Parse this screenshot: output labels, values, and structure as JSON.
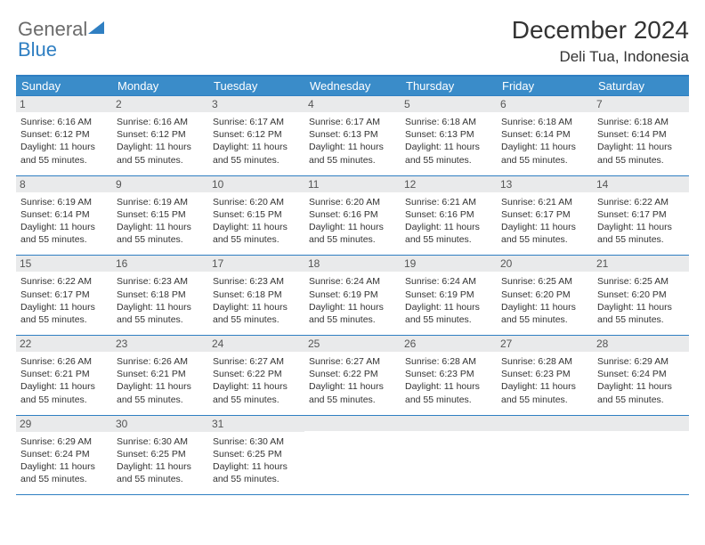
{
  "logo": {
    "text1": "General",
    "text2": "Blue",
    "text_color": "#6b6b6b",
    "blue_color": "#2f7fc2"
  },
  "title": "December 2024",
  "location": "Deli Tua, Indonesia",
  "header_bg": "#3a8cc9",
  "daynum_bg": "#e9eaeb",
  "border_color": "#2f7fc2",
  "day_names": [
    "Sunday",
    "Monday",
    "Tuesday",
    "Wednesday",
    "Thursday",
    "Friday",
    "Saturday"
  ],
  "daylight_text": "Daylight: 11 hours and 55 minutes.",
  "weeks": [
    [
      {
        "n": "1",
        "sunrise": "6:16 AM",
        "sunset": "6:12 PM"
      },
      {
        "n": "2",
        "sunrise": "6:16 AM",
        "sunset": "6:12 PM"
      },
      {
        "n": "3",
        "sunrise": "6:17 AM",
        "sunset": "6:12 PM"
      },
      {
        "n": "4",
        "sunrise": "6:17 AM",
        "sunset": "6:13 PM"
      },
      {
        "n": "5",
        "sunrise": "6:18 AM",
        "sunset": "6:13 PM"
      },
      {
        "n": "6",
        "sunrise": "6:18 AM",
        "sunset": "6:14 PM"
      },
      {
        "n": "7",
        "sunrise": "6:18 AM",
        "sunset": "6:14 PM"
      }
    ],
    [
      {
        "n": "8",
        "sunrise": "6:19 AM",
        "sunset": "6:14 PM"
      },
      {
        "n": "9",
        "sunrise": "6:19 AM",
        "sunset": "6:15 PM"
      },
      {
        "n": "10",
        "sunrise": "6:20 AM",
        "sunset": "6:15 PM"
      },
      {
        "n": "11",
        "sunrise": "6:20 AM",
        "sunset": "6:16 PM"
      },
      {
        "n": "12",
        "sunrise": "6:21 AM",
        "sunset": "6:16 PM"
      },
      {
        "n": "13",
        "sunrise": "6:21 AM",
        "sunset": "6:17 PM"
      },
      {
        "n": "14",
        "sunrise": "6:22 AM",
        "sunset": "6:17 PM"
      }
    ],
    [
      {
        "n": "15",
        "sunrise": "6:22 AM",
        "sunset": "6:17 PM"
      },
      {
        "n": "16",
        "sunrise": "6:23 AM",
        "sunset": "6:18 PM"
      },
      {
        "n": "17",
        "sunrise": "6:23 AM",
        "sunset": "6:18 PM"
      },
      {
        "n": "18",
        "sunrise": "6:24 AM",
        "sunset": "6:19 PM"
      },
      {
        "n": "19",
        "sunrise": "6:24 AM",
        "sunset": "6:19 PM"
      },
      {
        "n": "20",
        "sunrise": "6:25 AM",
        "sunset": "6:20 PM"
      },
      {
        "n": "21",
        "sunrise": "6:25 AM",
        "sunset": "6:20 PM"
      }
    ],
    [
      {
        "n": "22",
        "sunrise": "6:26 AM",
        "sunset": "6:21 PM"
      },
      {
        "n": "23",
        "sunrise": "6:26 AM",
        "sunset": "6:21 PM"
      },
      {
        "n": "24",
        "sunrise": "6:27 AM",
        "sunset": "6:22 PM"
      },
      {
        "n": "25",
        "sunrise": "6:27 AM",
        "sunset": "6:22 PM"
      },
      {
        "n": "26",
        "sunrise": "6:28 AM",
        "sunset": "6:23 PM"
      },
      {
        "n": "27",
        "sunrise": "6:28 AM",
        "sunset": "6:23 PM"
      },
      {
        "n": "28",
        "sunrise": "6:29 AM",
        "sunset": "6:24 PM"
      }
    ],
    [
      {
        "n": "29",
        "sunrise": "6:29 AM",
        "sunset": "6:24 PM"
      },
      {
        "n": "30",
        "sunrise": "6:30 AM",
        "sunset": "6:25 PM"
      },
      {
        "n": "31",
        "sunrise": "6:30 AM",
        "sunset": "6:25 PM"
      },
      null,
      null,
      null,
      null
    ]
  ]
}
